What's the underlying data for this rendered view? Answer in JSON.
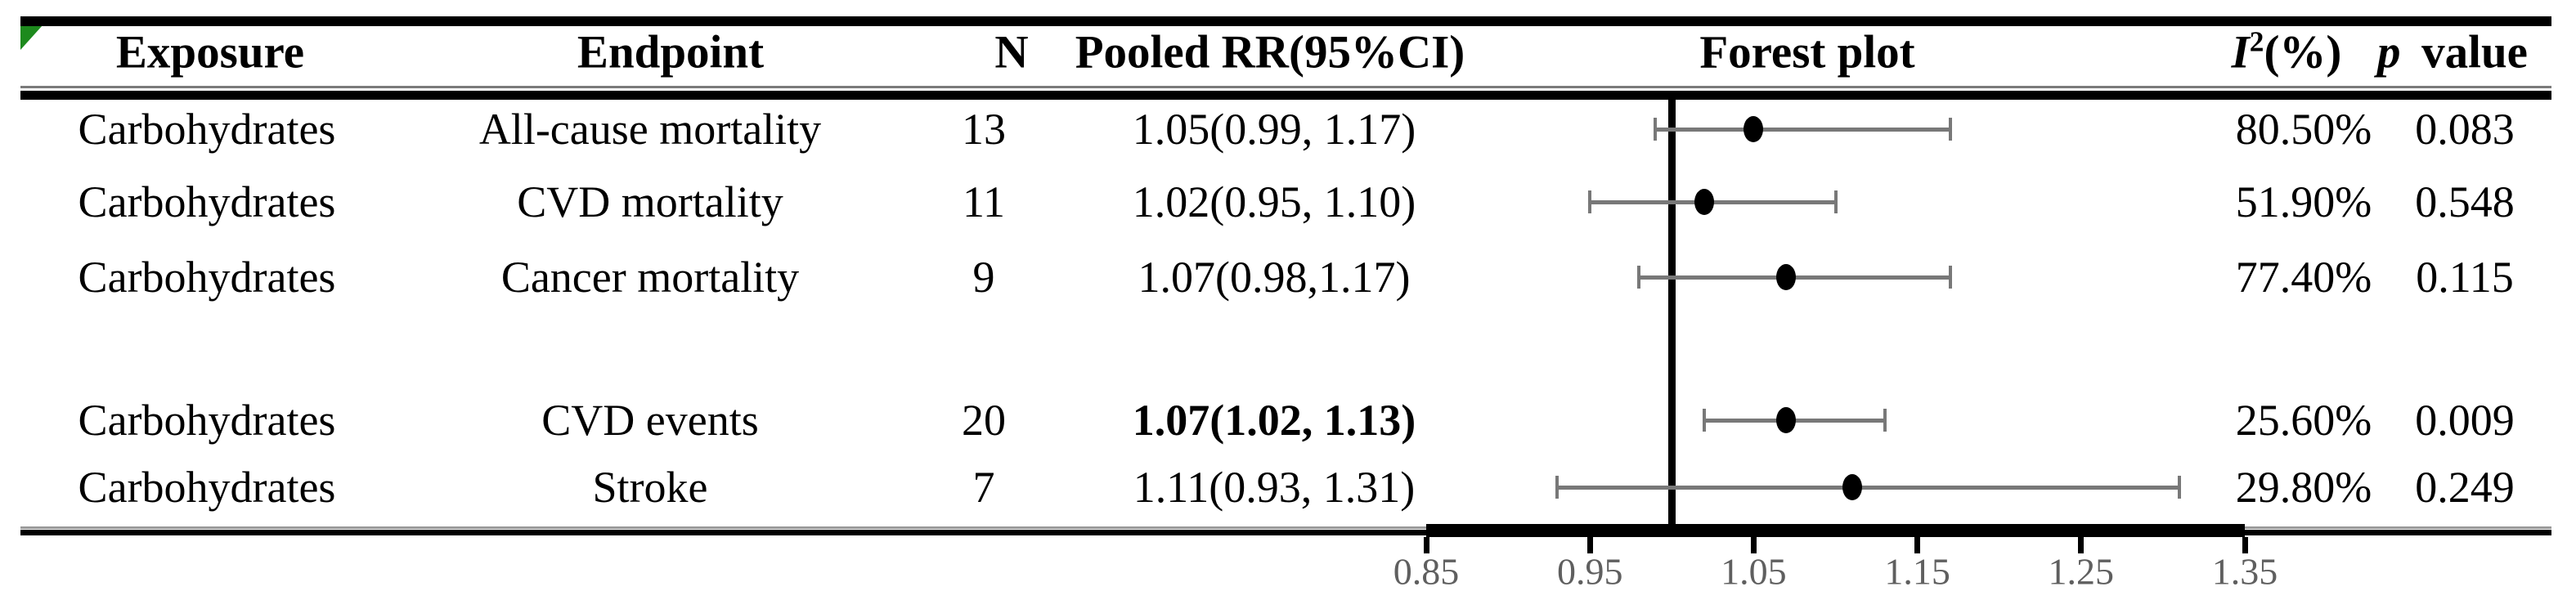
{
  "chart_data": {
    "type": "scatter",
    "subtype": "forest-plot",
    "title": "Forest plot",
    "columns": {
      "exposure": "Exposure",
      "endpoint": "Endpoint",
      "n": "N",
      "pooled_rr": "Pooled RR(95%CI)",
      "forest": "Forest plot",
      "i2_letter": "I",
      "i2_sup": "2",
      "i2_unit": "(%)",
      "p_letter": "p",
      "p_word": "value"
    },
    "rows": [
      {
        "exposure": "Carbohydrates",
        "endpoint": "All-cause mortality",
        "n": "13",
        "pooled_rr": "1.05(0.99, 1.17)",
        "rr": 1.05,
        "ci_low": 0.99,
        "ci_high": 1.17,
        "i2": "80.50%",
        "p": "0.083",
        "rr_bold": false
      },
      {
        "exposure": "Carbohydrates",
        "endpoint": "CVD mortality",
        "n": "11",
        "pooled_rr": "1.02(0.95, 1.10)",
        "rr": 1.02,
        "ci_low": 0.95,
        "ci_high": 1.1,
        "i2": "51.90%",
        "p": "0.548",
        "rr_bold": false
      },
      {
        "exposure": "Carbohydrates",
        "endpoint": "Cancer mortality",
        "n": "9",
        "pooled_rr": "1.07(0.98,1.17)",
        "rr": 1.07,
        "ci_low": 0.98,
        "ci_high": 1.17,
        "i2": "77.40%",
        "p": "0.115",
        "rr_bold": false
      },
      {
        "exposure": "Carbohydrates",
        "endpoint": "CVD events",
        "n": "20",
        "pooled_rr": "1.07(1.02, 1.13)",
        "rr": 1.07,
        "ci_low": 1.02,
        "ci_high": 1.13,
        "i2": "25.60%",
        "p": "0.009",
        "rr_bold": true
      },
      {
        "exposure": "Carbohydrates",
        "endpoint": "Stroke",
        "n": "7",
        "pooled_rr": "1.11(0.93, 1.31)",
        "rr": 1.11,
        "ci_low": 0.93,
        "ci_high": 1.31,
        "i2": "29.80%",
        "p": "0.249",
        "rr_bold": false
      }
    ],
    "axis": {
      "min": 0.85,
      "max": 1.35,
      "ticks": [
        "0.85",
        "0.95",
        "1.05",
        "1.15",
        "1.25",
        "1.35"
      ],
      "ref_line": 1.0
    }
  },
  "colors": {
    "corner_flag": "#1d8a1d",
    "whisker": "#787878",
    "point": "#000000",
    "ref_line": "#000000",
    "axis": "#000000",
    "tick_label": "#5f5f5f"
  }
}
